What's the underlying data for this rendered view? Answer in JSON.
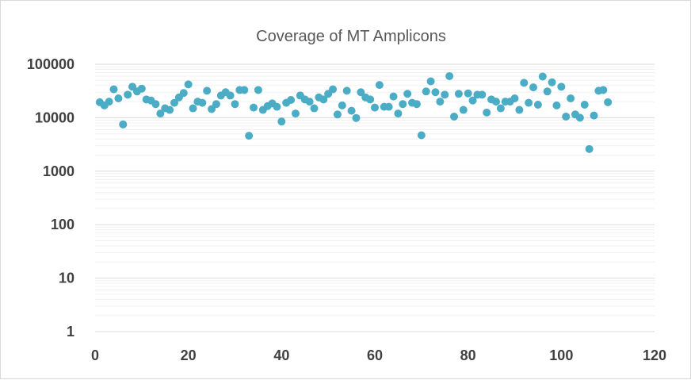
{
  "chart_data": {
    "type": "scatter",
    "title": "Coverage of MT Amplicons",
    "xlabel": "",
    "ylabel": "",
    "xlim": [
      0,
      120
    ],
    "ylim": [
      1,
      100000
    ],
    "yscale": "log",
    "grid": "on",
    "legend": "none",
    "marker_color": "#4bacc6",
    "x_tick_labels": [
      "0",
      "20",
      "40",
      "60",
      "80",
      "100",
      "120"
    ],
    "y_tick_labels": [
      "1",
      "10",
      "100",
      "1000",
      "10000",
      "100000"
    ],
    "series": [
      {
        "x": [
          1,
          2,
          3,
          4,
          5,
          6,
          7,
          8,
          9,
          10,
          11,
          12,
          13,
          14,
          15,
          16,
          17,
          18,
          19,
          20,
          21,
          22,
          23,
          24,
          25,
          26,
          27,
          28,
          29,
          30,
          31,
          32,
          33,
          34,
          35,
          36,
          37,
          38,
          39,
          40,
          41,
          42,
          43,
          44,
          45,
          46,
          47,
          48,
          49,
          50,
          51,
          52,
          53,
          54,
          55,
          56,
          57,
          58,
          59,
          60,
          61,
          62,
          63,
          64,
          65,
          66,
          67,
          68,
          69,
          70,
          71,
          72,
          73,
          74,
          75,
          76,
          77,
          78,
          79,
          80,
          81,
          82,
          83,
          84,
          85,
          86,
          87,
          88,
          89,
          90,
          91,
          92,
          93,
          94,
          95,
          96,
          97,
          98,
          99,
          100,
          101,
          102,
          103,
          104,
          105,
          106,
          107,
          108,
          109,
          110
        ],
        "y": [
          19500,
          17000,
          20000,
          34000,
          23000,
          7500,
          27000,
          38000,
          31000,
          35000,
          22000,
          21000,
          18000,
          12000,
          15000,
          14000,
          19000,
          24000,
          29000,
          42000,
          15000,
          20000,
          19000,
          32000,
          14500,
          18000,
          26000,
          30000,
          26000,
          18000,
          33000,
          33000,
          4600,
          15500,
          33000,
          14000,
          16500,
          18500,
          16000,
          8500,
          19000,
          21500,
          12000,
          26000,
          22000,
          20000,
          15000,
          24000,
          22000,
          28000,
          34000,
          11500,
          17000,
          32000,
          13500,
          9900,
          30000,
          24000,
          22000,
          15500,
          41000,
          16000,
          16000,
          25000,
          12000,
          18000,
          28000,
          19000,
          18000,
          4700,
          31000,
          48000,
          30000,
          20000,
          27000,
          60000,
          10500,
          28000,
          14000,
          28500,
          21000,
          27000,
          27000,
          12500,
          22000,
          20000,
          15000,
          20000,
          20000,
          23000,
          14000,
          45000,
          19000,
          37000,
          17500,
          59000,
          31000,
          46000,
          17000,
          38000,
          10500,
          23000,
          11500,
          10000,
          17500,
          2600,
          11000,
          32000,
          33000,
          19500
        ]
      }
    ]
  }
}
